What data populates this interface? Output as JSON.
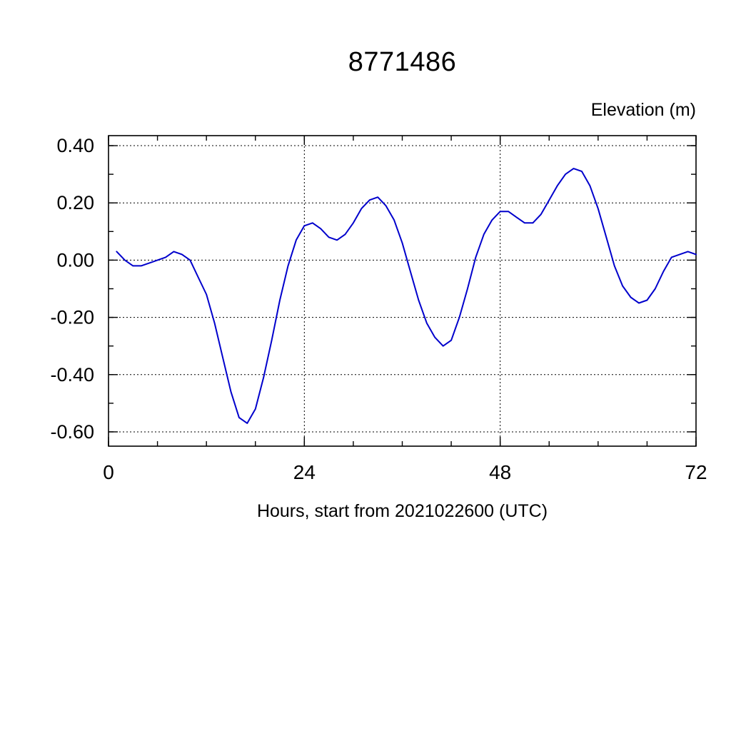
{
  "page": {
    "title": "8771486",
    "right_axis_label": "Elevation (m)",
    "x_axis_label": "Hours, start from 2021022600 (UTC)"
  },
  "chart_data": {
    "type": "line",
    "title": "8771486",
    "ylabel": "Elevation (m)",
    "xlabel": "Hours, start from 2021022600 (UTC)",
    "xlim": [
      0,
      72
    ],
    "ylim": [
      -0.65,
      0.435
    ],
    "xticks": {
      "values": [
        0,
        24,
        48,
        72
      ],
      "labels": [
        "0",
        "24",
        "48",
        "72"
      ],
      "minor_step": 6
    },
    "yticks": {
      "values": [
        0.4,
        0.2,
        0.0,
        -0.2,
        -0.4,
        -0.6
      ],
      "labels": [
        "0.40",
        "0.20",
        "0.00",
        "-0.20",
        "-0.40",
        "-0.60"
      ],
      "minor_step": 0.1
    },
    "grid": {
      "horizontal_at": [
        0.4,
        0.2,
        0.0,
        -0.2,
        -0.4,
        -0.6
      ],
      "vertical_at": [
        24,
        48
      ],
      "style": "dotted"
    },
    "line_color": "#0000cc",
    "frame_color": "#000000",
    "series": [
      {
        "name": "elevation",
        "x": [
          1,
          2,
          3,
          4,
          5,
          6,
          7,
          8,
          9,
          10,
          11,
          12,
          13,
          14,
          15,
          16,
          17,
          18,
          19,
          20,
          21,
          22,
          23,
          24,
          25,
          26,
          27,
          28,
          29,
          30,
          31,
          32,
          33,
          34,
          35,
          36,
          37,
          38,
          39,
          40,
          41,
          42,
          43,
          44,
          45,
          46,
          47,
          48,
          49,
          50,
          51,
          52,
          53,
          54,
          55,
          56,
          57,
          58,
          59,
          60,
          61,
          62,
          63,
          64,
          65,
          66,
          67,
          68,
          69,
          70,
          71,
          72
        ],
        "y": [
          0.03,
          0.0,
          -0.02,
          -0.02,
          -0.01,
          0.0,
          0.01,
          0.03,
          0.02,
          0.0,
          -0.06,
          -0.12,
          -0.22,
          -0.34,
          -0.46,
          -0.55,
          -0.57,
          -0.52,
          -0.41,
          -0.28,
          -0.14,
          -0.02,
          0.07,
          0.12,
          0.13,
          0.11,
          0.08,
          0.07,
          0.09,
          0.13,
          0.18,
          0.21,
          0.22,
          0.19,
          0.14,
          0.06,
          -0.04,
          -0.14,
          -0.22,
          -0.27,
          -0.3,
          -0.28,
          -0.2,
          -0.1,
          0.01,
          0.09,
          0.14,
          0.17,
          0.17,
          0.15,
          0.13,
          0.13,
          0.16,
          0.21,
          0.26,
          0.3,
          0.32,
          0.31,
          0.26,
          0.18,
          0.08,
          -0.02,
          -0.09,
          -0.13,
          -0.15,
          -0.14,
          -0.1,
          -0.04,
          0.01,
          0.02,
          0.03,
          0.02
        ]
      }
    ]
  }
}
